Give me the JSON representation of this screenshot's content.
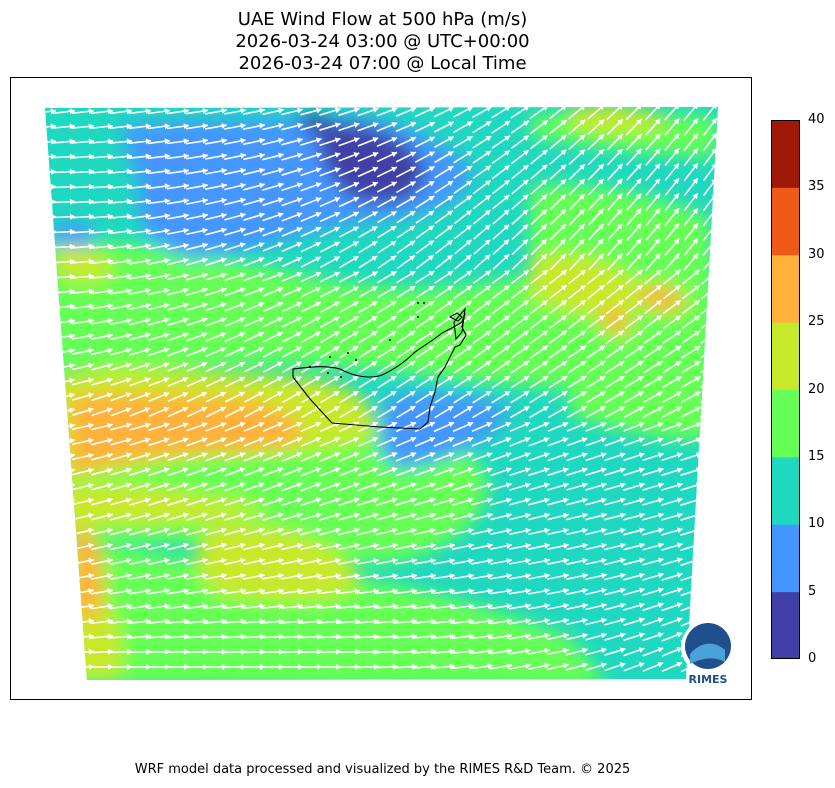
{
  "title": {
    "line1": "UAE Wind Flow at 500 hPa (m/s)",
    "line2": "2026-03-24 03:00 @ UTC+00:00",
    "line3": "2026-03-24 07:00 @ Local Time"
  },
  "colorbar": {
    "ticks": [
      "0",
      "5",
      "10",
      "15",
      "20",
      "25",
      "30",
      "35",
      "40"
    ],
    "colors": [
      "#3f3fa6",
      "#4496ff",
      "#1fd8c0",
      "#66ff55",
      "#c8e82c",
      "#ffb23a",
      "#ef5a16",
      "#a01808"
    ]
  },
  "logo": {
    "label": "RIMES"
  },
  "footer": "WRF model data processed and visualized by the RIMES R&D Team. © 2025"
}
